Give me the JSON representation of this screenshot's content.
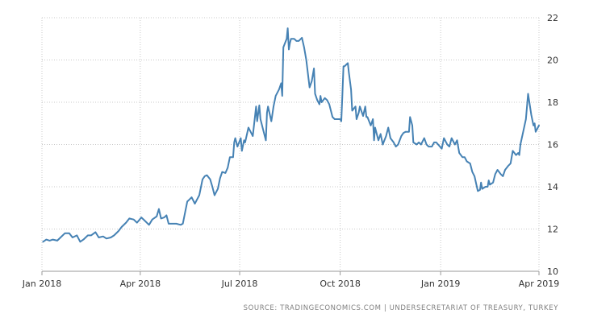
{
  "chart_data": {
    "type": "line",
    "title": "",
    "xlabel": "",
    "ylabel": "",
    "ylim": [
      10,
      22
    ],
    "yticks": [
      10,
      12,
      14,
      16,
      18,
      20,
      22
    ],
    "xticks": [
      {
        "x": "2018-01-01",
        "label": "Jan 2018"
      },
      {
        "x": "2018-04-01",
        "label": "Apr 2018"
      },
      {
        "x": "2018-07-01",
        "label": "Jul 2018"
      },
      {
        "x": "2018-10-01",
        "label": "Oct 2018"
      },
      {
        "x": "2019-01-01",
        "label": "Jan 2019"
      },
      {
        "x": "2019-04-01",
        "label": "Apr 2019"
      }
    ],
    "grid": true,
    "y_axis_side": "right",
    "series_color": "#4682b4",
    "series": [
      {
        "values": [
          [
            "2018-01-02",
            11.4
          ],
          [
            "2018-01-05",
            11.5
          ],
          [
            "2018-01-08",
            11.45
          ],
          [
            "2018-01-11",
            11.5
          ],
          [
            "2018-01-15",
            11.45
          ],
          [
            "2018-01-18",
            11.6
          ],
          [
            "2018-01-22",
            11.8
          ],
          [
            "2018-01-26",
            11.8
          ],
          [
            "2018-01-29",
            11.6
          ],
          [
            "2018-02-02",
            11.7
          ],
          [
            "2018-02-05",
            11.4
          ],
          [
            "2018-02-08",
            11.5
          ],
          [
            "2018-02-12",
            11.7
          ],
          [
            "2018-02-15",
            11.7
          ],
          [
            "2018-02-19",
            11.85
          ],
          [
            "2018-02-22",
            11.6
          ],
          [
            "2018-02-26",
            11.65
          ],
          [
            "2018-03-01",
            11.55
          ],
          [
            "2018-03-05",
            11.6
          ],
          [
            "2018-03-08",
            11.7
          ],
          [
            "2018-03-12",
            11.9
          ],
          [
            "2018-03-15",
            12.1
          ],
          [
            "2018-03-19",
            12.3
          ],
          [
            "2018-03-22",
            12.5
          ],
          [
            "2018-03-26",
            12.45
          ],
          [
            "2018-03-29",
            12.3
          ],
          [
            "2018-04-02",
            12.55
          ],
          [
            "2018-04-05",
            12.4
          ],
          [
            "2018-04-09",
            12.2
          ],
          [
            "2018-04-12",
            12.45
          ],
          [
            "2018-04-16",
            12.6
          ],
          [
            "2018-04-18",
            12.95
          ],
          [
            "2018-04-20",
            12.5
          ],
          [
            "2018-04-23",
            12.55
          ],
          [
            "2018-04-25",
            12.65
          ],
          [
            "2018-04-27",
            12.25
          ],
          [
            "2018-05-01",
            12.25
          ],
          [
            "2018-05-04",
            12.25
          ],
          [
            "2018-05-08",
            12.2
          ],
          [
            "2018-05-10",
            12.25
          ],
          [
            "2018-05-14",
            13.3
          ],
          [
            "2018-05-16",
            13.4
          ],
          [
            "2018-05-18",
            13.5
          ],
          [
            "2018-05-21",
            13.2
          ],
          [
            "2018-05-23",
            13.4
          ],
          [
            "2018-05-25",
            13.6
          ],
          [
            "2018-05-28",
            14.35
          ],
          [
            "2018-05-30",
            14.5
          ],
          [
            "2018-06-01",
            14.55
          ],
          [
            "2018-06-04",
            14.35
          ],
          [
            "2018-06-06",
            14.0
          ],
          [
            "2018-06-08",
            13.6
          ],
          [
            "2018-06-11",
            13.9
          ],
          [
            "2018-06-13",
            14.4
          ],
          [
            "2018-06-15",
            14.7
          ],
          [
            "2018-06-18",
            14.65
          ],
          [
            "2018-06-20",
            14.9
          ],
          [
            "2018-06-22",
            15.4
          ],
          [
            "2018-06-25",
            15.4
          ],
          [
            "2018-06-26",
            16.1
          ],
          [
            "2018-06-27",
            16.3
          ],
          [
            "2018-06-29",
            15.9
          ],
          [
            "2018-07-02",
            16.3
          ],
          [
            "2018-07-03",
            15.7
          ],
          [
            "2018-07-05",
            16.2
          ],
          [
            "2018-07-06",
            16.1
          ],
          [
            "2018-07-09",
            16.8
          ],
          [
            "2018-07-11",
            16.6
          ],
          [
            "2018-07-13",
            16.4
          ],
          [
            "2018-07-16",
            17.8
          ],
          [
            "2018-07-17",
            17.1
          ],
          [
            "2018-07-19",
            17.85
          ],
          [
            "2018-07-20",
            17.2
          ],
          [
            "2018-07-23",
            16.6
          ],
          [
            "2018-07-25",
            16.2
          ],
          [
            "2018-07-26",
            17.5
          ],
          [
            "2018-07-27",
            17.8
          ],
          [
            "2018-07-30",
            17.1
          ],
          [
            "2018-08-01",
            17.8
          ],
          [
            "2018-08-03",
            18.3
          ],
          [
            "2018-08-06",
            18.6
          ],
          [
            "2018-08-08",
            18.9
          ],
          [
            "2018-08-09",
            18.3
          ],
          [
            "2018-08-10",
            20.6
          ],
          [
            "2018-08-13",
            21.0
          ],
          [
            "2018-08-14",
            21.5
          ],
          [
            "2018-08-15",
            20.5
          ],
          [
            "2018-08-16",
            20.8
          ],
          [
            "2018-08-17",
            21.0
          ],
          [
            "2018-08-20",
            21.0
          ],
          [
            "2018-08-22",
            20.9
          ],
          [
            "2018-08-24",
            20.9
          ],
          [
            "2018-08-27",
            21.05
          ],
          [
            "2018-08-29",
            20.6
          ],
          [
            "2018-08-31",
            20.0
          ],
          [
            "2018-09-03",
            18.7
          ],
          [
            "2018-09-05",
            19.0
          ],
          [
            "2018-09-07",
            19.6
          ],
          [
            "2018-09-08",
            18.4
          ],
          [
            "2018-09-10",
            18.1
          ],
          [
            "2018-09-12",
            17.9
          ],
          [
            "2018-09-13",
            18.3
          ],
          [
            "2018-09-14",
            18.0
          ],
          [
            "2018-09-17",
            18.2
          ],
          [
            "2018-09-19",
            18.1
          ],
          [
            "2018-09-21",
            17.9
          ],
          [
            "2018-09-24",
            17.3
          ],
          [
            "2018-09-26",
            17.2
          ],
          [
            "2018-09-28",
            17.2
          ],
          [
            "2018-10-01",
            17.2
          ],
          [
            "2018-10-02",
            17.1
          ],
          [
            "2018-10-03",
            18.3
          ],
          [
            "2018-10-04",
            19.7
          ],
          [
            "2018-10-05",
            19.7
          ],
          [
            "2018-10-08",
            19.85
          ],
          [
            "2018-10-09",
            19.4
          ],
          [
            "2018-10-11",
            18.6
          ],
          [
            "2018-10-12",
            17.6
          ],
          [
            "2018-10-15",
            17.8
          ],
          [
            "2018-10-16",
            17.2
          ],
          [
            "2018-10-18",
            17.5
          ],
          [
            "2018-10-19",
            17.8
          ],
          [
            "2018-10-22",
            17.35
          ],
          [
            "2018-10-24",
            17.8
          ],
          [
            "2018-10-25",
            17.3
          ],
          [
            "2018-10-26",
            17.3
          ],
          [
            "2018-10-29",
            16.9
          ],
          [
            "2018-10-31",
            17.2
          ],
          [
            "2018-11-01",
            16.2
          ],
          [
            "2018-11-02",
            16.8
          ],
          [
            "2018-11-05",
            16.2
          ],
          [
            "2018-11-07",
            16.5
          ],
          [
            "2018-11-09",
            16.0
          ],
          [
            "2018-11-12",
            16.4
          ],
          [
            "2018-11-14",
            16.8
          ],
          [
            "2018-11-16",
            16.3
          ],
          [
            "2018-11-19",
            16.1
          ],
          [
            "2018-11-21",
            15.9
          ],
          [
            "2018-11-23",
            16.0
          ],
          [
            "2018-11-26",
            16.4
          ],
          [
            "2018-11-28",
            16.55
          ],
          [
            "2018-11-30",
            16.6
          ],
          [
            "2018-12-03",
            16.6
          ],
          [
            "2018-12-04",
            17.3
          ],
          [
            "2018-12-06",
            16.9
          ],
          [
            "2018-12-07",
            16.1
          ],
          [
            "2018-12-10",
            16.0
          ],
          [
            "2018-12-12",
            16.1
          ],
          [
            "2018-12-14",
            16.0
          ],
          [
            "2018-12-17",
            16.3
          ],
          [
            "2018-12-19",
            16.0
          ],
          [
            "2018-12-21",
            15.9
          ],
          [
            "2018-12-24",
            15.9
          ],
          [
            "2018-12-26",
            16.1
          ],
          [
            "2018-12-28",
            16.1
          ],
          [
            "2019-01-02",
            15.8
          ],
          [
            "2019-01-04",
            16.3
          ],
          [
            "2019-01-07",
            16.0
          ],
          [
            "2019-01-09",
            15.9
          ],
          [
            "2019-01-11",
            16.3
          ],
          [
            "2019-01-14",
            16.0
          ],
          [
            "2019-01-16",
            16.2
          ],
          [
            "2019-01-18",
            15.6
          ],
          [
            "2019-01-21",
            15.4
          ],
          [
            "2019-01-23",
            15.4
          ],
          [
            "2019-01-25",
            15.2
          ],
          [
            "2019-01-28",
            15.1
          ],
          [
            "2019-01-30",
            14.7
          ],
          [
            "2019-02-01",
            14.5
          ],
          [
            "2019-02-04",
            13.8
          ],
          [
            "2019-02-06",
            13.85
          ],
          [
            "2019-02-07",
            14.2
          ],
          [
            "2019-02-08",
            13.9
          ],
          [
            "2019-02-11",
            14.0
          ],
          [
            "2019-02-13",
            14.0
          ],
          [
            "2019-02-14",
            14.3
          ],
          [
            "2019-02-15",
            14.1
          ],
          [
            "2019-02-18",
            14.2
          ],
          [
            "2019-02-20",
            14.6
          ],
          [
            "2019-02-22",
            14.8
          ],
          [
            "2019-02-25",
            14.6
          ],
          [
            "2019-02-27",
            14.5
          ],
          [
            "2019-03-01",
            14.8
          ],
          [
            "2019-03-04",
            15.0
          ],
          [
            "2019-03-06",
            15.1
          ],
          [
            "2019-03-08",
            15.7
          ],
          [
            "2019-03-11",
            15.5
          ],
          [
            "2019-03-13",
            15.6
          ],
          [
            "2019-03-14",
            15.5
          ],
          [
            "2019-03-15",
            16.0
          ],
          [
            "2019-03-18",
            16.7
          ],
          [
            "2019-03-20",
            17.2
          ],
          [
            "2019-03-22",
            18.4
          ],
          [
            "2019-03-25",
            17.4
          ],
          [
            "2019-03-27",
            16.9
          ],
          [
            "2019-03-28",
            17.0
          ],
          [
            "2019-03-29",
            16.6
          ],
          [
            "2019-04-01",
            16.9
          ]
        ]
      }
    ]
  },
  "source": "SOURCE: TRADINGECONOMICS.COM  |  UNDERSECRETARIAT OF TREASURY, TURKEY"
}
